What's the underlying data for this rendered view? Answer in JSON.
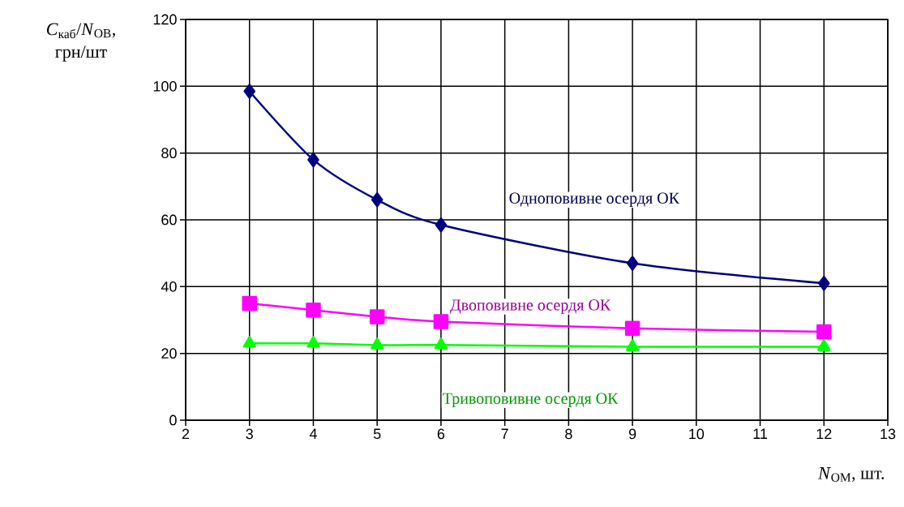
{
  "chart_data": {
    "type": "line",
    "xlabel": "*N*$_{ОМ}$, шт.",
    "ylabel": "*C*$_{каб}$/*N*$_{ОВ}$, грн/шт",
    "x": [
      3,
      4,
      5,
      6,
      9,
      12
    ],
    "series": [
      {
        "name": "Одноповивне осердя ОК",
        "color": "#000080",
        "marker": "diamond",
        "values": [
          98.5,
          78,
          66,
          58.5,
          47,
          41
        ]
      },
      {
        "name": "Двоповивне осердя ОК",
        "color": "#ff00ff",
        "marker": "square",
        "values": [
          35,
          33,
          31,
          29.5,
          27.5,
          26.5
        ]
      },
      {
        "name": "Тривоповивне осердя ОК",
        "color": "#00ff00",
        "marker": "triangle",
        "values": [
          23,
          23,
          22.5,
          22.5,
          22,
          22
        ]
      }
    ],
    "xlim": [
      2,
      13
    ],
    "ylim": [
      0,
      120
    ],
    "xticks": [
      2,
      3,
      4,
      5,
      6,
      7,
      8,
      9,
      10,
      11,
      12,
      13
    ],
    "yticks": [
      0,
      20,
      40,
      60,
      80,
      100,
      120
    ],
    "grid": true
  }
}
